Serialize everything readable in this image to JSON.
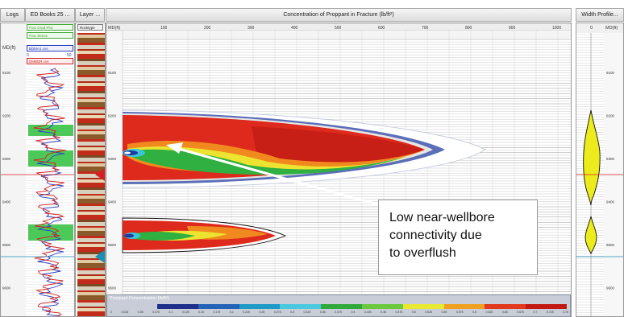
{
  "headers": {
    "logs": "Logs",
    "books": "ED Books 25 ...",
    "layer": "Layer ...",
    "concentration": "Concentration of Proppant in Fracture (lb/ft²)",
    "width": "Width Profile..."
  },
  "layer_track": {
    "title": "Rocktype"
  },
  "log_track": {
    "md_label": "MD(ft)",
    "curves": [
      {
        "label": "Frac Grad Plot",
        "color": "#3aaa2e"
      },
      {
        "label": "Frac Stress",
        "color": "#3aaa2e"
      },
      {
        "label": "BDMA1.cvs",
        "color": "#2a3fbf"
      },
      {
        "label": "DMBDR.cvs",
        "color": "#d02020"
      }
    ],
    "scale_values": [
      "0",
      "50"
    ]
  },
  "main_plot": {
    "md_label": "MD(ft)",
    "x_ticks": [
      "100",
      "200",
      "300",
      "400",
      "500",
      "600",
      "700",
      "800",
      "900",
      "1000"
    ]
  },
  "width_profile": {
    "zero_label": "0",
    "md_label": "MD(ft)"
  },
  "depths": [
    "9100",
    "9200",
    "9300",
    "9400",
    "9500",
    "9600"
  ],
  "callout": {
    "text": "Low near-wellbore\nconnectivity due\nto overflush"
  },
  "legend": {
    "title": "Proppant Concentration (lb/ft²)",
    "ticks": [
      "0",
      "0.025",
      "0.05",
      "0.075",
      "0.1",
      "0.125",
      "0.15",
      "0.175",
      "0.2",
      "0.225",
      "0.25",
      "0.275",
      "0.3",
      "0.325",
      "0.35",
      "0.375",
      "0.4",
      "0.425",
      "0.45",
      "0.475",
      "0.5",
      "0.525",
      "0.55",
      "0.575",
      "0.6",
      "0.625",
      "0.65",
      "0.675",
      "0.7",
      "0.725",
      "0.75"
    ],
    "colors": [
      "#1e2f8c",
      "#2563b8",
      "#1e9ac8",
      "#4ac8e0",
      "#2faa3a",
      "#6dc840",
      "#e8e830",
      "#f0a020",
      "#e23a1e",
      "#c21a12"
    ]
  },
  "colors": {
    "frac_red": "#de2a1c",
    "frac_dark_red": "#b41410",
    "frac_orange": "#f08a1e",
    "frac_yellow": "#ece431",
    "frac_green": "#2fb040",
    "frac_cyan": "#3cc4dc",
    "frac_blue": "#1c3aa0",
    "width_yellow": "#ecec1c",
    "upper_marker": "#d42020",
    "lower_marker": "#1890b8",
    "green_zone": "#2ebf3c",
    "arrow": "#ffffff"
  }
}
